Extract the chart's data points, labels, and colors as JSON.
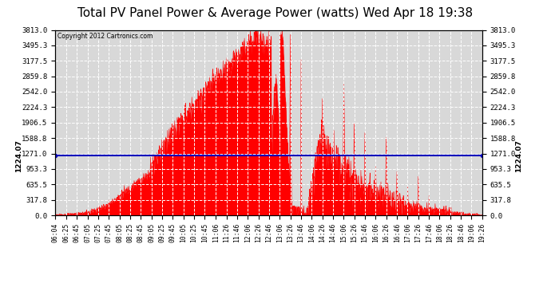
{
  "title": "Total PV Panel Power & Average Power (watts) Wed Apr 18 19:38",
  "copyright": "Copyright 2012 Cartronics.com",
  "average_value": 1224.07,
  "y_max": 3813.0,
  "y_min": 0.0,
  "y_ticks": [
    0.0,
    317.8,
    635.5,
    953.3,
    1271.0,
    1588.8,
    1906.5,
    2224.3,
    2542.0,
    2859.8,
    3177.5,
    3495.3,
    3813.0
  ],
  "background_color": "#ffffff",
  "plot_bg_color": "#d8d8d8",
  "fill_color": "#ff0000",
  "avg_line_color": "#0000bb",
  "grid_color": "#ffffff",
  "grid_style": "--",
  "title_fontsize": 11,
  "avg_label": "1224.07",
  "x_tick_labels": [
    "06:04",
    "06:25",
    "06:45",
    "07:05",
    "07:25",
    "07:45",
    "08:05",
    "08:25",
    "08:45",
    "09:05",
    "09:25",
    "09:45",
    "10:05",
    "10:25",
    "10:45",
    "11:06",
    "11:26",
    "11:46",
    "12:06",
    "12:26",
    "12:46",
    "13:06",
    "13:26",
    "13:46",
    "14:06",
    "14:26",
    "14:46",
    "15:06",
    "15:26",
    "15:46",
    "16:06",
    "16:26",
    "16:46",
    "17:06",
    "17:26",
    "17:46",
    "18:06",
    "18:26",
    "18:46",
    "19:06",
    "19:26"
  ]
}
